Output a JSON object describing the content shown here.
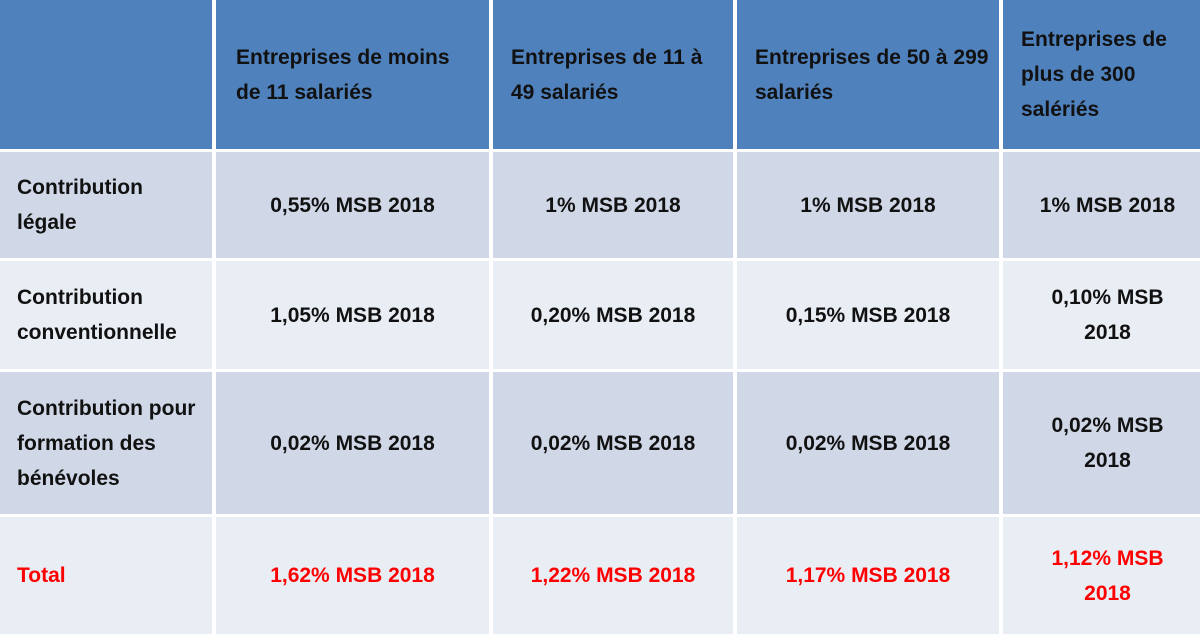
{
  "table": {
    "headers": [
      "",
      "Entreprises de moins de 11 salariés",
      "Entreprises de 11 à 49 salariés",
      "Entreprises de 50 à 299 salariés",
      "Entreprises de plus de 300 salériés"
    ],
    "rows": [
      {
        "label": "Contribution légale",
        "values": [
          "0,55% MSB 2018",
          "1% MSB 2018",
          "1% MSB 2018",
          "1% MSB 2018"
        ]
      },
      {
        "label": "Contribution conventionnelle",
        "values": [
          "1,05% MSB 2018",
          "0,20% MSB 2018",
          "0,15% MSB 2018",
          "0,10% MSB 2018"
        ]
      },
      {
        "label": "Contribution pour formation des bénévoles",
        "values": [
          "0,02% MSB 2018",
          "0,02% MSB 2018",
          "0,02% MSB 2018",
          "0,02% MSB 2018"
        ]
      },
      {
        "label": "Total",
        "values": [
          "1,62% MSB 2018",
          "1,22% MSB 2018",
          "1,17% MSB 2018",
          "1,12% MSB 2018"
        ]
      }
    ]
  },
  "colors": {
    "header_bg": "#4f81bd",
    "row_dark": "#d0d8e8",
    "row_light": "#e9edf4",
    "total_text": "#ff0000"
  }
}
